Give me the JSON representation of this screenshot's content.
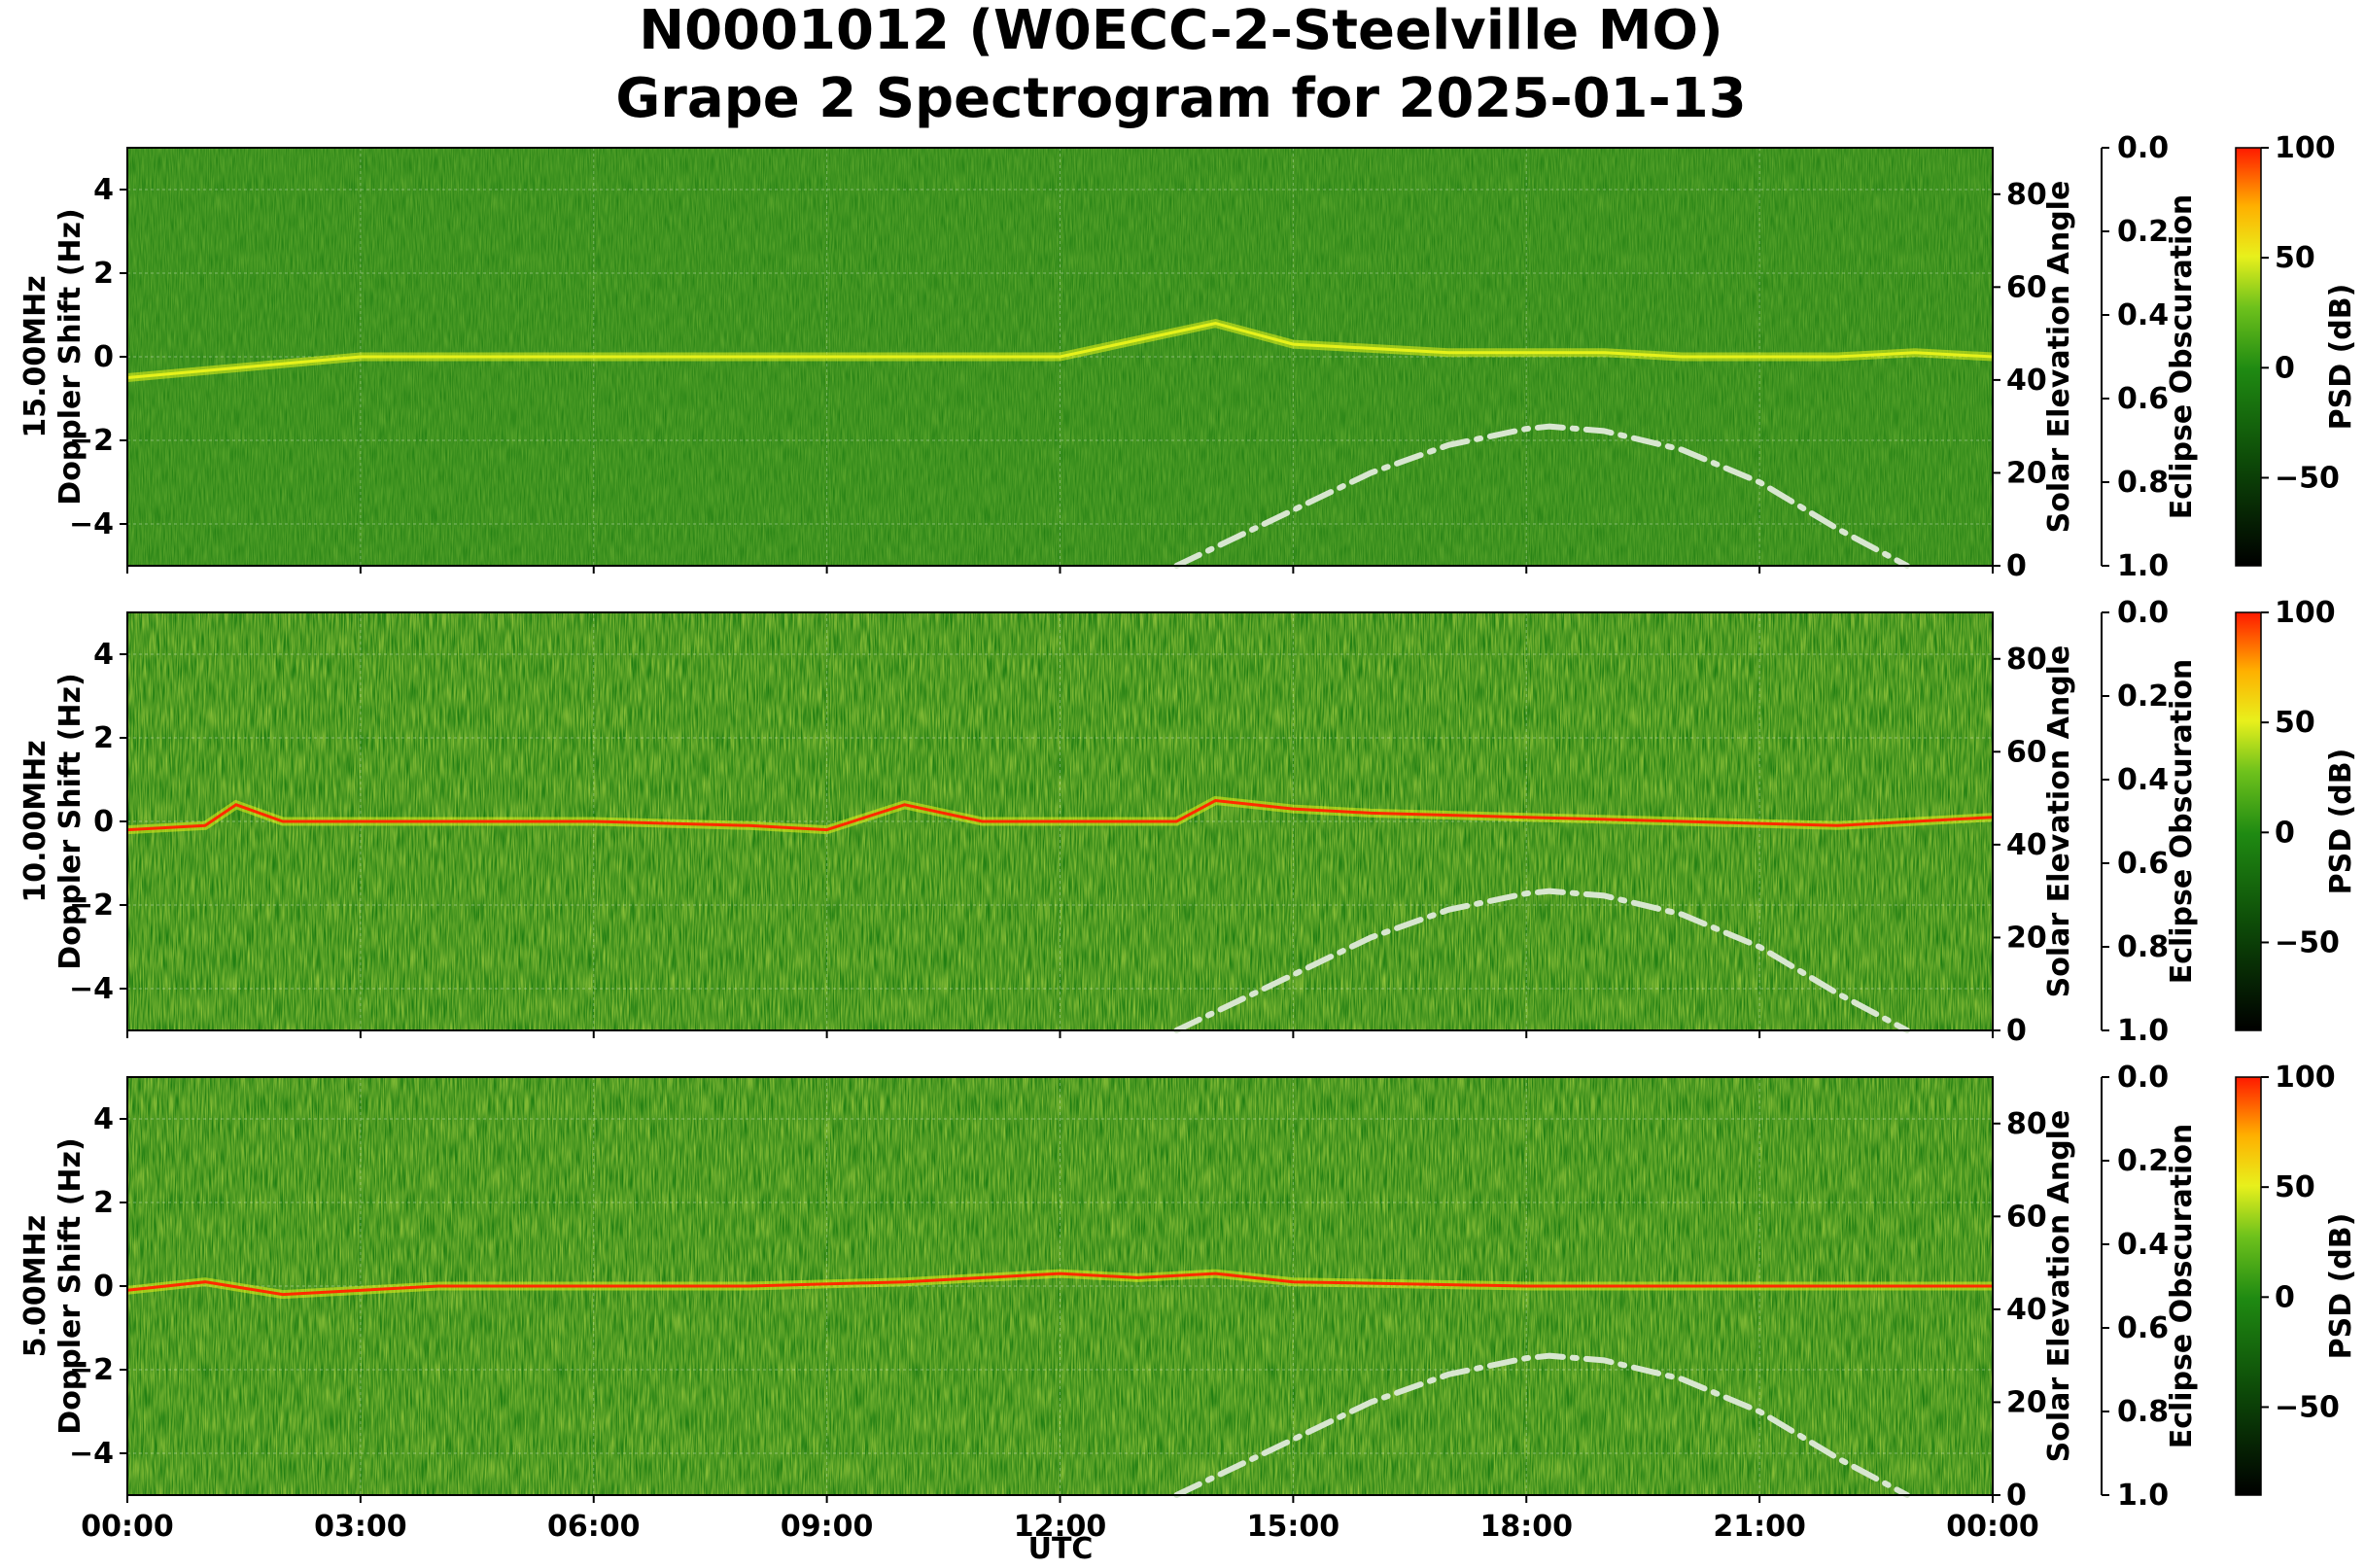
{
  "title_line1": "N0001012 (W0ECC-2-Steelville MO)",
  "title_line2": "Grape 2 Spectrogram for 2025-01-13",
  "xlabel": "UTC",
  "colors": {
    "background_green": "#1f7d12",
    "signal_yellow": "#e6f21a",
    "signal_red": "#ff2a00",
    "elevation_curve": "#d8e6d0"
  },
  "chart_data": [
    {
      "type": "heatmap",
      "band": "15.00MHz",
      "ylabel": "15.00MHz\nDoppler Shift (Hz)",
      "ylim": [
        -5,
        5
      ],
      "yticks": [
        "4",
        "2",
        "0",
        "−2",
        "−4"
      ],
      "right_axis1": {
        "label": "Solar Elevation Angle",
        "ticks": [
          "80",
          "60",
          "40",
          "20",
          "0"
        ],
        "range": [
          0,
          90
        ]
      },
      "right_axis2": {
        "label": "Eclipse Obscuration",
        "ticks": [
          "0.0",
          "0.2",
          "0.4",
          "0.6",
          "0.8",
          "1.0"
        ],
        "range": [
          0,
          1
        ]
      },
      "colorbar": {
        "label": "PSD (dB)",
        "ticks": [
          "100",
          "50",
          "0",
          "−50"
        ],
        "range": [
          -90,
          100
        ]
      },
      "grid": true,
      "carrier_trace": {
        "x_hours": [
          0,
          3,
          6,
          9,
          12,
          14,
          15,
          16,
          17,
          18,
          19,
          20,
          21,
          22,
          23,
          24
        ],
        "doppler_hz": [
          -0.5,
          0,
          0,
          0,
          0,
          0.8,
          0.3,
          0.2,
          0.1,
          0.1,
          0.1,
          0.0,
          0.0,
          0.0,
          0.1,
          0.0
        ]
      },
      "solar_elevation": {
        "x_hours": [
          13.5,
          14,
          15,
          16,
          17,
          18,
          18.3,
          19,
          20,
          21,
          22,
          22.9
        ],
        "elevation_deg": [
          0,
          4,
          12,
          20,
          26,
          29.5,
          30,
          29,
          25,
          18,
          8,
          0
        ]
      }
    },
    {
      "type": "heatmap",
      "band": "10.00MHz",
      "ylabel": "10.00MHz\nDoppler Shift (Hz)",
      "ylim": [
        -5,
        5
      ],
      "yticks": [
        "4",
        "2",
        "0",
        "−2",
        "−4"
      ],
      "right_axis1": {
        "label": "Solar Elevation Angle",
        "ticks": [
          "80",
          "60",
          "40",
          "20",
          "0"
        ],
        "range": [
          0,
          90
        ]
      },
      "right_axis2": {
        "label": "Eclipse Obscuration",
        "ticks": [
          "0.0",
          "0.2",
          "0.4",
          "0.6",
          "0.8",
          "1.0"
        ],
        "range": [
          0,
          1
        ]
      },
      "colorbar": {
        "label": "PSD (dB)",
        "ticks": [
          "100",
          "50",
          "0",
          "−50"
        ],
        "range": [
          -90,
          100
        ]
      },
      "grid": true,
      "carrier_trace": {
        "x_hours": [
          0,
          1,
          1.4,
          2,
          4,
          6,
          8,
          9,
          10,
          11,
          12,
          13.5,
          14,
          15,
          16,
          18,
          20,
          22,
          24
        ],
        "doppler_hz": [
          -0.2,
          -0.1,
          0.4,
          0.0,
          0.0,
          0.0,
          -0.1,
          -0.2,
          0.4,
          0.0,
          0.0,
          0.0,
          0.5,
          0.3,
          0.2,
          0.1,
          0.0,
          -0.1,
          0.1
        ]
      },
      "solar_elevation": {
        "x_hours": [
          13.5,
          14,
          15,
          16,
          17,
          18,
          18.3,
          19,
          20,
          21,
          22,
          22.9
        ],
        "elevation_deg": [
          0,
          4,
          12,
          20,
          26,
          29.5,
          30,
          29,
          25,
          18,
          8,
          0
        ]
      }
    },
    {
      "type": "heatmap",
      "band": "5.00MHz",
      "ylabel": "5.00MHz\nDoppler Shift (Hz)",
      "ylim": [
        -5,
        5
      ],
      "yticks": [
        "4",
        "2",
        "0",
        "−2",
        "−4"
      ],
      "xticks": [
        "00:00",
        "03:00",
        "06:00",
        "09:00",
        "12:00",
        "15:00",
        "18:00",
        "21:00",
        "00:00"
      ],
      "right_axis1": {
        "label": "Solar Elevation Angle",
        "ticks": [
          "80",
          "60",
          "40",
          "20",
          "0"
        ],
        "range": [
          0,
          90
        ]
      },
      "right_axis2": {
        "label": "Eclipse Obscuration",
        "ticks": [
          "0.0",
          "0.2",
          "0.4",
          "0.6",
          "0.8",
          "1.0"
        ],
        "range": [
          0,
          1
        ]
      },
      "colorbar": {
        "label": "PSD (dB)",
        "ticks": [
          "100",
          "50",
          "0",
          "−50"
        ],
        "range": [
          -90,
          100
        ]
      },
      "grid": true,
      "carrier_trace": {
        "x_hours": [
          0,
          1,
          2,
          4,
          6,
          8,
          10,
          12,
          13,
          14,
          15,
          18,
          21,
          24
        ],
        "doppler_hz": [
          -0.1,
          0.1,
          -0.2,
          0.0,
          0.0,
          0.0,
          0.1,
          0.3,
          0.2,
          0.3,
          0.1,
          0.0,
          0.0,
          0.0
        ]
      },
      "solar_elevation": {
        "x_hours": [
          13.5,
          14,
          15,
          16,
          17,
          18,
          18.3,
          19,
          20,
          21,
          22,
          22.9
        ],
        "elevation_deg": [
          0,
          4,
          12,
          20,
          26,
          29.5,
          30,
          29,
          25,
          18,
          8,
          0
        ]
      }
    }
  ]
}
